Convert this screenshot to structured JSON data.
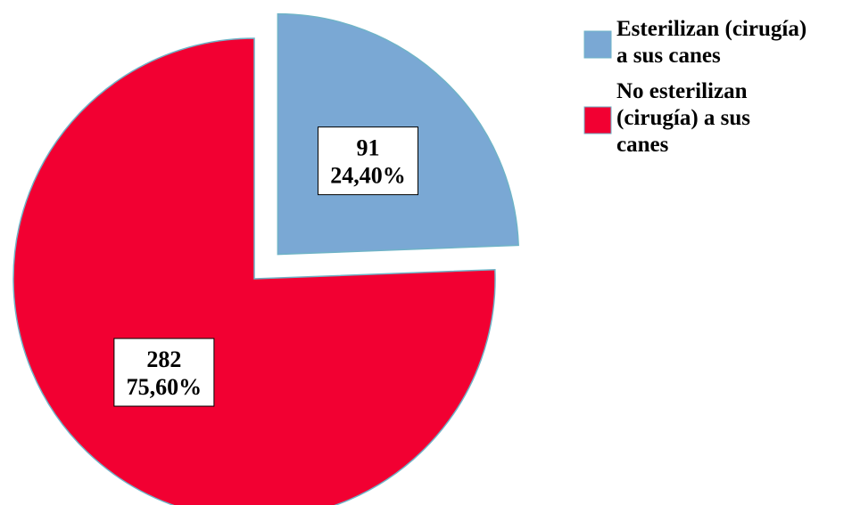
{
  "chart_data": {
    "type": "pie",
    "title": "",
    "slices": [
      {
        "label": "Esterilizan (cirugía) a sus canes",
        "value": 91,
        "percent_label": "24,40%",
        "color": "#7aa8d4"
      },
      {
        "label": "No esterilizan (cirugía) a sus canes",
        "value": 282,
        "percent_label": "75,60%",
        "color": "#f20032"
      }
    ],
    "legend": {
      "position": "top-right",
      "entries": [
        {
          "lines": [
            "Esterilizan (cirugía)",
            "a sus canes"
          ],
          "color": "#7aa8d4"
        },
        {
          "lines": [
            "No esterilizan",
            "(cirugía) a sus",
            "canes"
          ],
          "color": "#f20032"
        }
      ]
    },
    "exploded_slice": 0,
    "slice_outline_color": "#6fb3c7"
  }
}
